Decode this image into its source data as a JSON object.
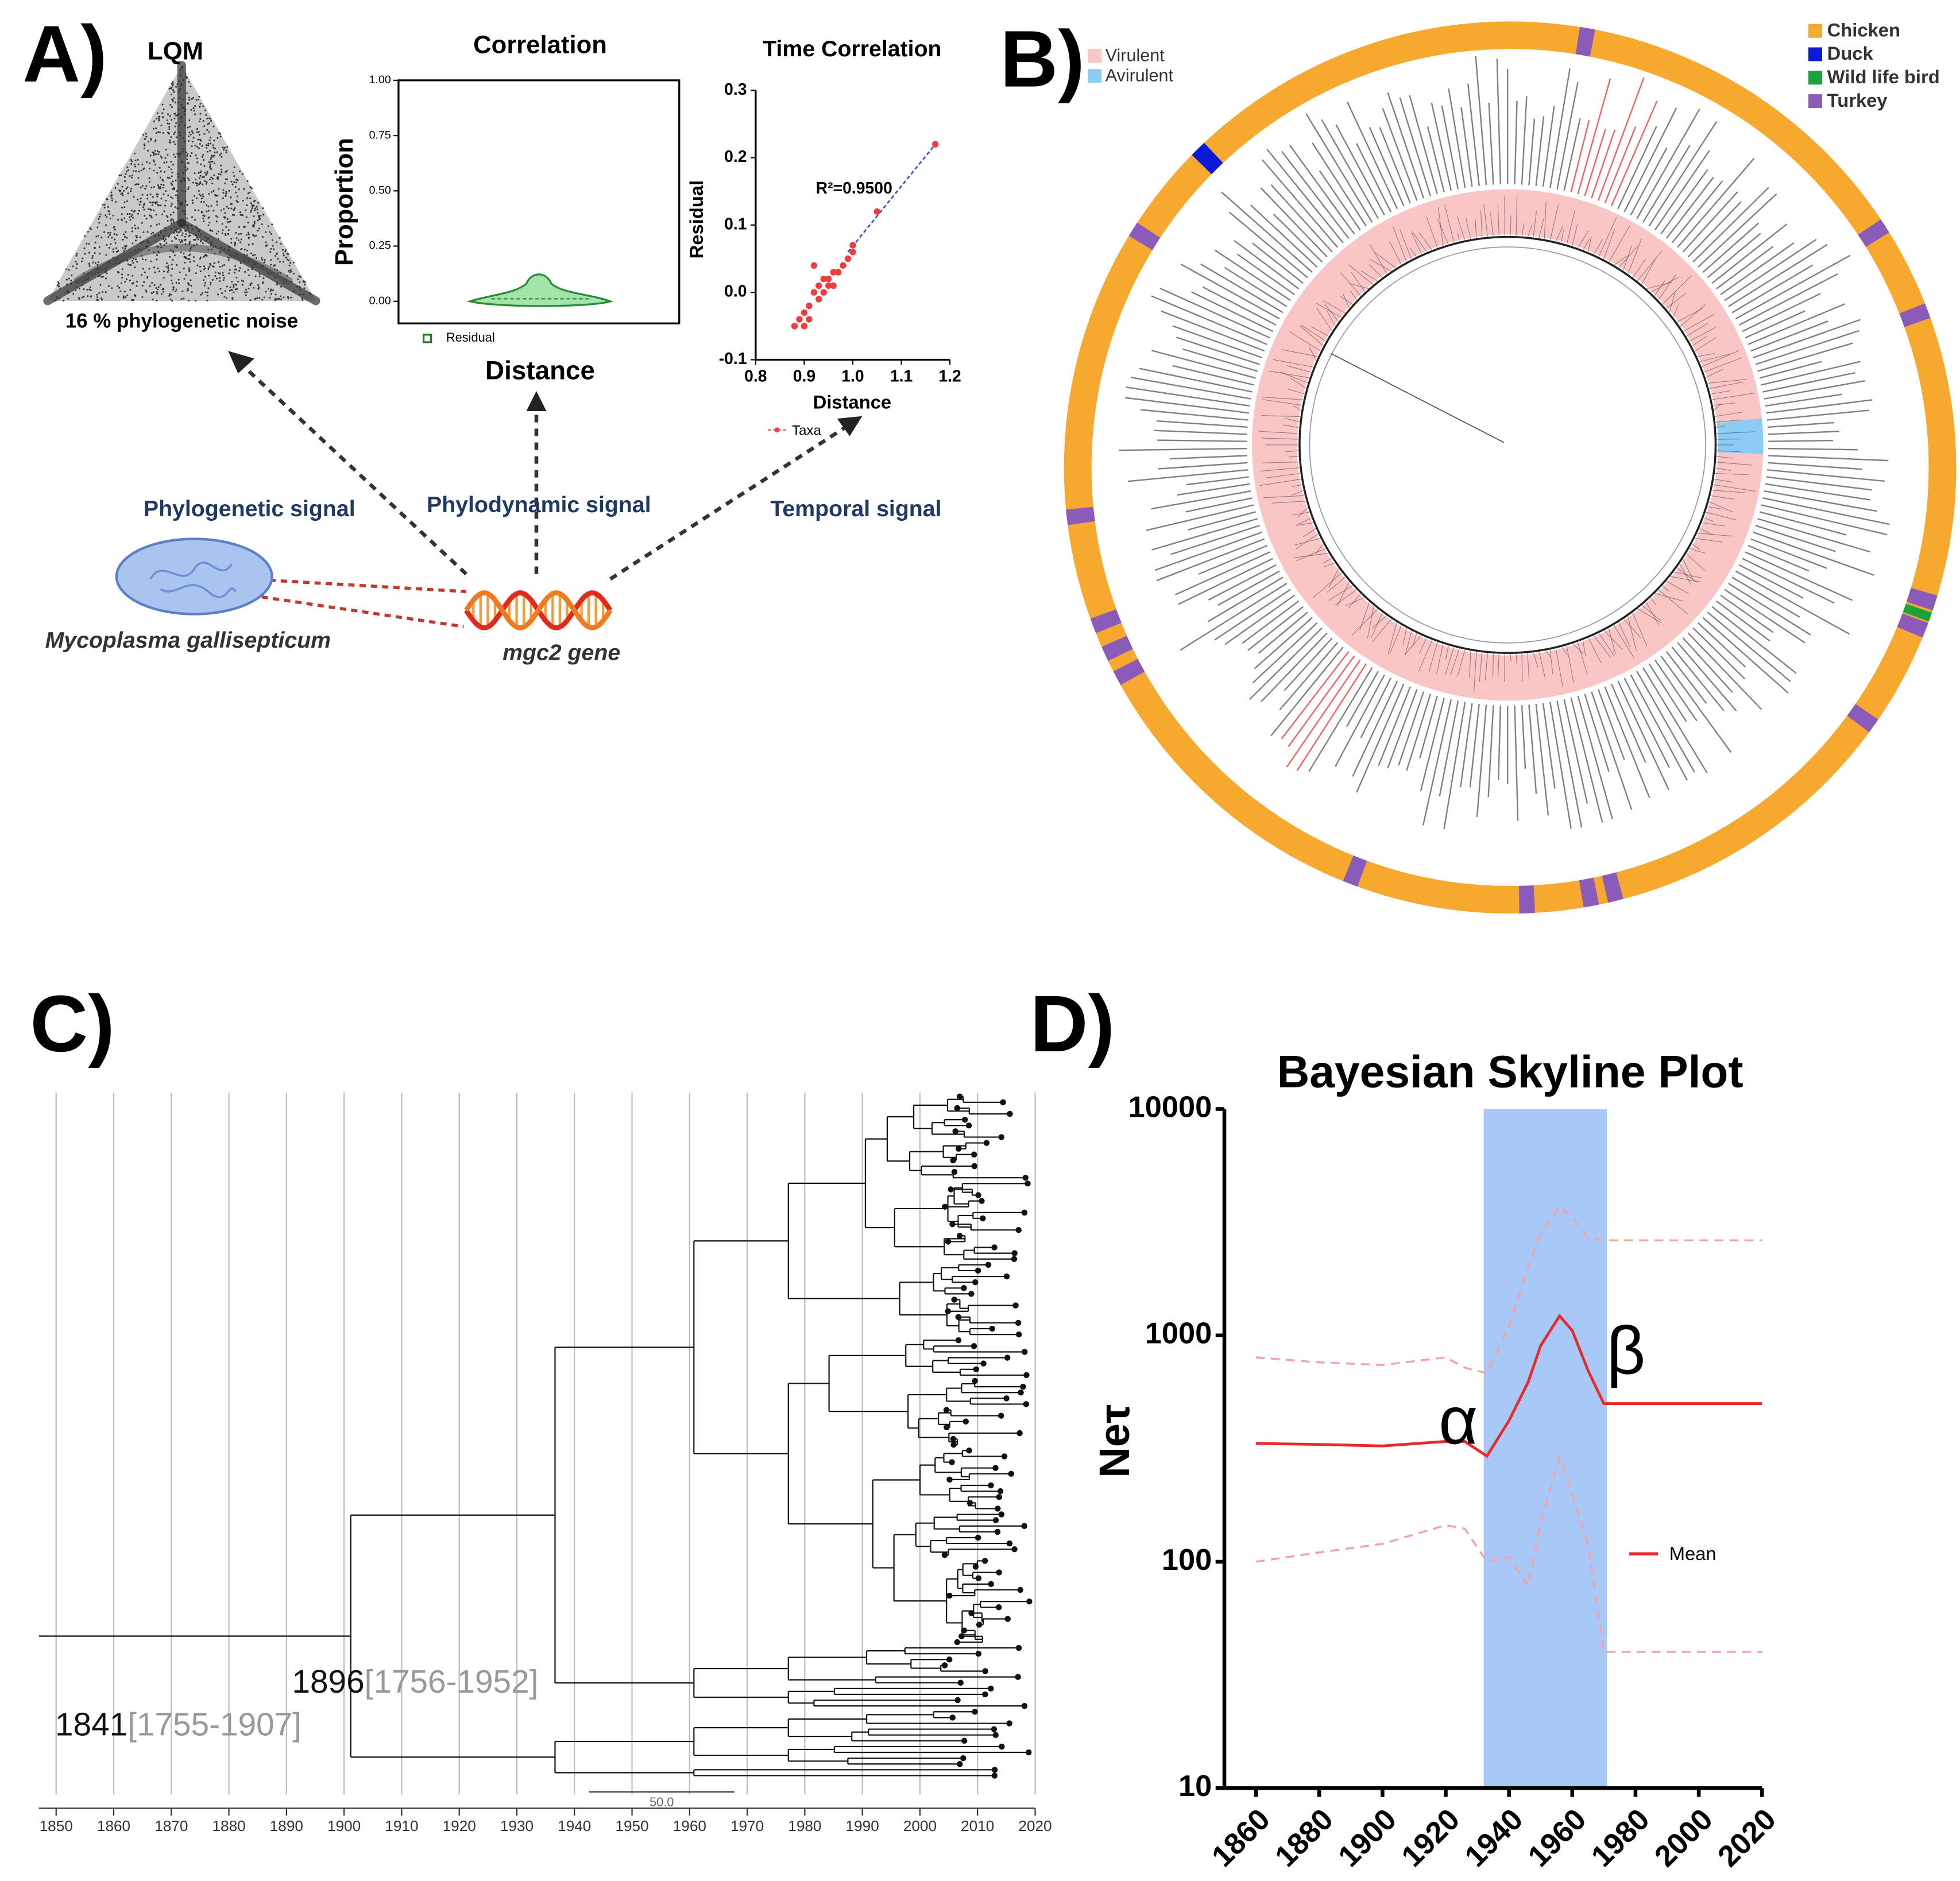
{
  "panel_labels": [
    "A)",
    "B)",
    "C)",
    "D)"
  ],
  "lqm": {
    "title": "LQM",
    "caption": "16 %  phylogenetic noise"
  },
  "signals": {
    "phylogenetic": "Phylogenetic signal",
    "phylodynamic": "Phylodynamic signal",
    "temporal": "Temporal signal",
    "organism": "Mycoplasma gallisepticum",
    "gene": "mgc2 gene"
  },
  "chart_data": [
    {
      "type": "violin",
      "title": "Correlation",
      "y_label": "Proportion",
      "x_label": "Distance",
      "legend": "Residual",
      "color": "#a3e4a9",
      "ylim": [
        -0.1,
        1
      ],
      "yticks": [
        {
          "value": 0,
          "label": "0.00"
        },
        {
          "value": 0.25,
          "label": "0.25"
        },
        {
          "value": 0.5,
          "label": "0.50"
        },
        {
          "value": 0.75,
          "label": "0.75"
        },
        {
          "value": 1,
          "label": "1.00"
        }
      ]
    },
    {
      "type": "scatter",
      "title": "Time Correlation",
      "x_label": "Distance",
      "y_label": "Residual",
      "legend": "Taxa",
      "annotation": "R²=0.9500",
      "color": "#f03c3c",
      "fit_color": "#3050d0",
      "xlim": [
        0.8,
        1.2
      ],
      "ylim": [
        -0.1,
        0.3
      ],
      "xticks": [
        0.8,
        0.9,
        {
          "value": 1,
          "label": "1.0"
        },
        1.1,
        1.2
      ],
      "yticks": [
        -0.1,
        {
          "value": 0,
          "label": "0.0"
        },
        0.1,
        0.2,
        0.3
      ],
      "x": [
        0.88,
        0.89,
        0.9,
        0.9,
        0.91,
        0.91,
        0.92,
        0.92,
        0.93,
        0.93,
        0.94,
        0.94,
        0.95,
        0.95,
        0.96,
        0.96,
        0.97,
        0.98,
        0.99,
        1.0,
        1.0,
        1.05,
        1.17
      ],
      "y": [
        -0.05,
        -0.04,
        -0.05,
        -0.03,
        -0.02,
        -0.04,
        0.0,
        0.04,
        0.01,
        -0.01,
        0.0,
        0.02,
        0.02,
        0.01,
        0.01,
        0.03,
        0.03,
        0.04,
        0.05,
        0.07,
        0.06,
        0.12,
        0.22
      ],
      "fit": {
        "x": [
          0.99,
          1.17
        ],
        "y": [
          0.06,
          0.22
        ]
      }
    },
    {
      "type": "line",
      "title": "Bayesian Skyline Plot",
      "y_label": "Neτ",
      "log_y": true,
      "xlim": [
        1850,
        2020
      ],
      "ylim": [
        10,
        10000
      ],
      "xticks": [
        1860,
        1880,
        1900,
        1920,
        1940,
        1960,
        1980,
        2000,
        2020
      ],
      "yticks": [
        10,
        100,
        1000,
        10000
      ],
      "highlight": [
        1932,
        1971
      ],
      "highlight_color": "#a8c8f8",
      "annotations": [
        "α",
        "β"
      ],
      "x": [
        1860,
        1880,
        1900,
        1920,
        1926,
        1933,
        1940,
        1946,
        1950,
        1956,
        1960,
        1965,
        1970,
        1980,
        2000,
        2020
      ],
      "series": [
        {
          "name": "Mean",
          "color": "#e52b2b",
          "values": [
            333,
            330,
            325,
            340,
            340,
            293,
            420,
            620,
            900,
            1220,
            1050,
            700,
            500,
            500,
            500,
            500
          ]
        },
        {
          "color": "#f4a3a3",
          "dashed": true,
          "values": [
            800,
            760,
            740,
            800,
            720,
            680,
            1100,
            2000,
            2800,
            3700,
            3300,
            2700,
            2630,
            2630,
            2630,
            2630
          ]
        },
        {
          "color": "#f4a3a3",
          "dashed": true,
          "values": [
            100,
            110,
            120,
            145,
            140,
            100,
            105,
            78,
            150,
            290,
            200,
            120,
            40,
            40,
            40,
            40
          ]
        }
      ]
    }
  ],
  "panel_b": {
    "virulence": [
      {
        "name": "Virulent",
        "color": "#f9c5c5"
      },
      {
        "name": "Avirulent",
        "color": "#8ccbf3"
      }
    ],
    "hosts": [
      {
        "name": "Chicken",
        "color": "#f6a92e"
      },
      {
        "name": "Duck",
        "color": "#0a1ad8"
      },
      {
        "name": "Wild life bird",
        "color": "#19a33a"
      },
      {
        "name": "Turkey",
        "color": "#8a5bb8"
      }
    ]
  },
  "panel_c": {
    "xlim": [
      1847,
      2020
    ],
    "xticks": [
      1850,
      1860,
      1870,
      1880,
      1890,
      1900,
      1910,
      1920,
      1930,
      1940,
      1950,
      1960,
      1970,
      1980,
      1990,
      2000,
      2010,
      2020
    ],
    "nodes": [
      {
        "date": "1841",
        "range": "[1755-1907]"
      },
      {
        "date": "1896",
        "range": "[1756-1952]"
      }
    ],
    "scale_label": "50.0"
  }
}
